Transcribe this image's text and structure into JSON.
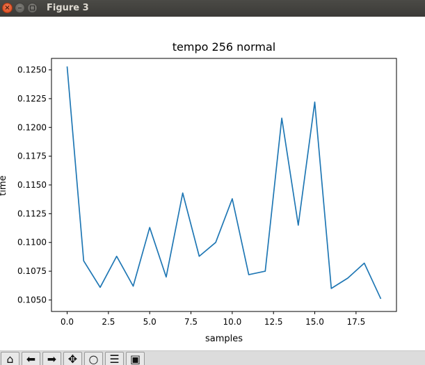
{
  "window": {
    "title": "Figure 3",
    "close_glyph": "×"
  },
  "chart_data": {
    "type": "line",
    "title": "tempo 256 normal",
    "xlabel": "samples",
    "ylabel": "time",
    "xlim": [
      -0.95,
      19.95
    ],
    "ylim": [
      0.104,
      0.126
    ],
    "xticks": [
      0.0,
      2.5,
      5.0,
      7.5,
      10.0,
      12.5,
      15.0,
      17.5
    ],
    "xtick_labels": [
      "0.0",
      "2.5",
      "5.0",
      "7.5",
      "10.0",
      "12.5",
      "15.0",
      "17.5"
    ],
    "yticks": [
      0.105,
      0.1075,
      0.11,
      0.1125,
      0.115,
      0.1175,
      0.12,
      0.1225,
      0.125
    ],
    "ytick_labels": [
      "0.1050",
      "0.1075",
      "0.1100",
      "0.1125",
      "0.1150",
      "0.1175",
      "0.1200",
      "0.1225",
      "0.1250"
    ],
    "grid": false,
    "series": [
      {
        "color": "#1f77b4",
        "x": [
          0,
          1,
          2,
          3,
          4,
          5,
          6,
          7,
          8,
          9,
          10,
          11,
          12,
          13,
          14,
          15,
          16,
          17,
          18,
          19
        ],
        "values": [
          0.1253,
          0.1084,
          0.1061,
          0.1088,
          0.1062,
          0.1113,
          0.107,
          0.1143,
          0.1088,
          0.11,
          0.1138,
          0.1072,
          0.1075,
          0.1208,
          0.1115,
          0.1222,
          0.106,
          0.1069,
          0.1082,
          0.1051
        ]
      }
    ]
  },
  "toolbar": {
    "buttons": [
      {
        "name": "home-icon",
        "glyph": "⌂"
      },
      {
        "name": "back-arrow-icon",
        "glyph": "⬅"
      },
      {
        "name": "forward-arrow-icon",
        "glyph": "➡"
      },
      {
        "name": "pan-icon",
        "glyph": "✥"
      },
      {
        "name": "zoom-icon",
        "glyph": "○"
      },
      {
        "name": "subplots-icon",
        "glyph": "☰"
      },
      {
        "name": "save-icon",
        "glyph": "▣"
      }
    ]
  }
}
